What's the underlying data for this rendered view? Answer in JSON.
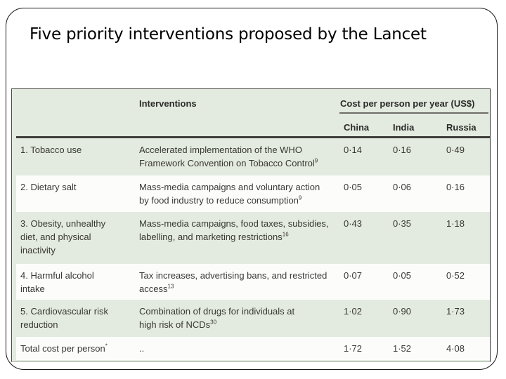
{
  "title": "Five priority interventions proposed by the Lancet",
  "table": {
    "columns": {
      "interventions": "Interventions",
      "cost_group": "Cost per person per year (US$)",
      "countries": [
        "China",
        "India",
        "Russia"
      ]
    },
    "rows": [
      {
        "label": "1. Tobacco use",
        "desc": "Accelerated implementation of the WHO\nFramework Convention on Tobacco Control",
        "ref": "9",
        "china": "0·14",
        "india": "0·16",
        "russia": "0·49"
      },
      {
        "label": "2. Dietary salt",
        "desc": "Mass-media campaigns and voluntary action\nby food industry to reduce consumption",
        "ref": "9",
        "china": "0·05",
        "india": "0·06",
        "russia": "0·16"
      },
      {
        "label": "3. Obesity, unhealthy\ndiet, and physical\ninactivity",
        "desc": "Mass-media campaigns, food taxes, subsidies,\nlabelling, and marketing restrictions",
        "ref": "16",
        "china": "0·43",
        "india": "0·35",
        "russia": "1·18"
      },
      {
        "label": "4. Harmful alcohol\nintake",
        "desc": "Tax increases, advertising bans, and restricted\naccess",
        "ref": "13",
        "china": "0·07",
        "india": "0·05",
        "russia": "0·52"
      },
      {
        "label": "5. Cardiovascular risk\nreduction",
        "desc": "Combination of drugs for individuals at\nhigh risk of NCDs",
        "ref": "30",
        "china": "1·02",
        "india": "0·90",
        "russia": "1·73"
      }
    ],
    "total": {
      "label": "Total cost per person",
      "label_ref": "*",
      "desc": "..",
      "china": "1·72",
      "india": "1·52",
      "russia": "4·08"
    }
  },
  "colors": {
    "row_green": "#e3eae0",
    "row_white": "#fcfdfb",
    "rule_dark": "#3e3e3b",
    "text": "#393833"
  }
}
